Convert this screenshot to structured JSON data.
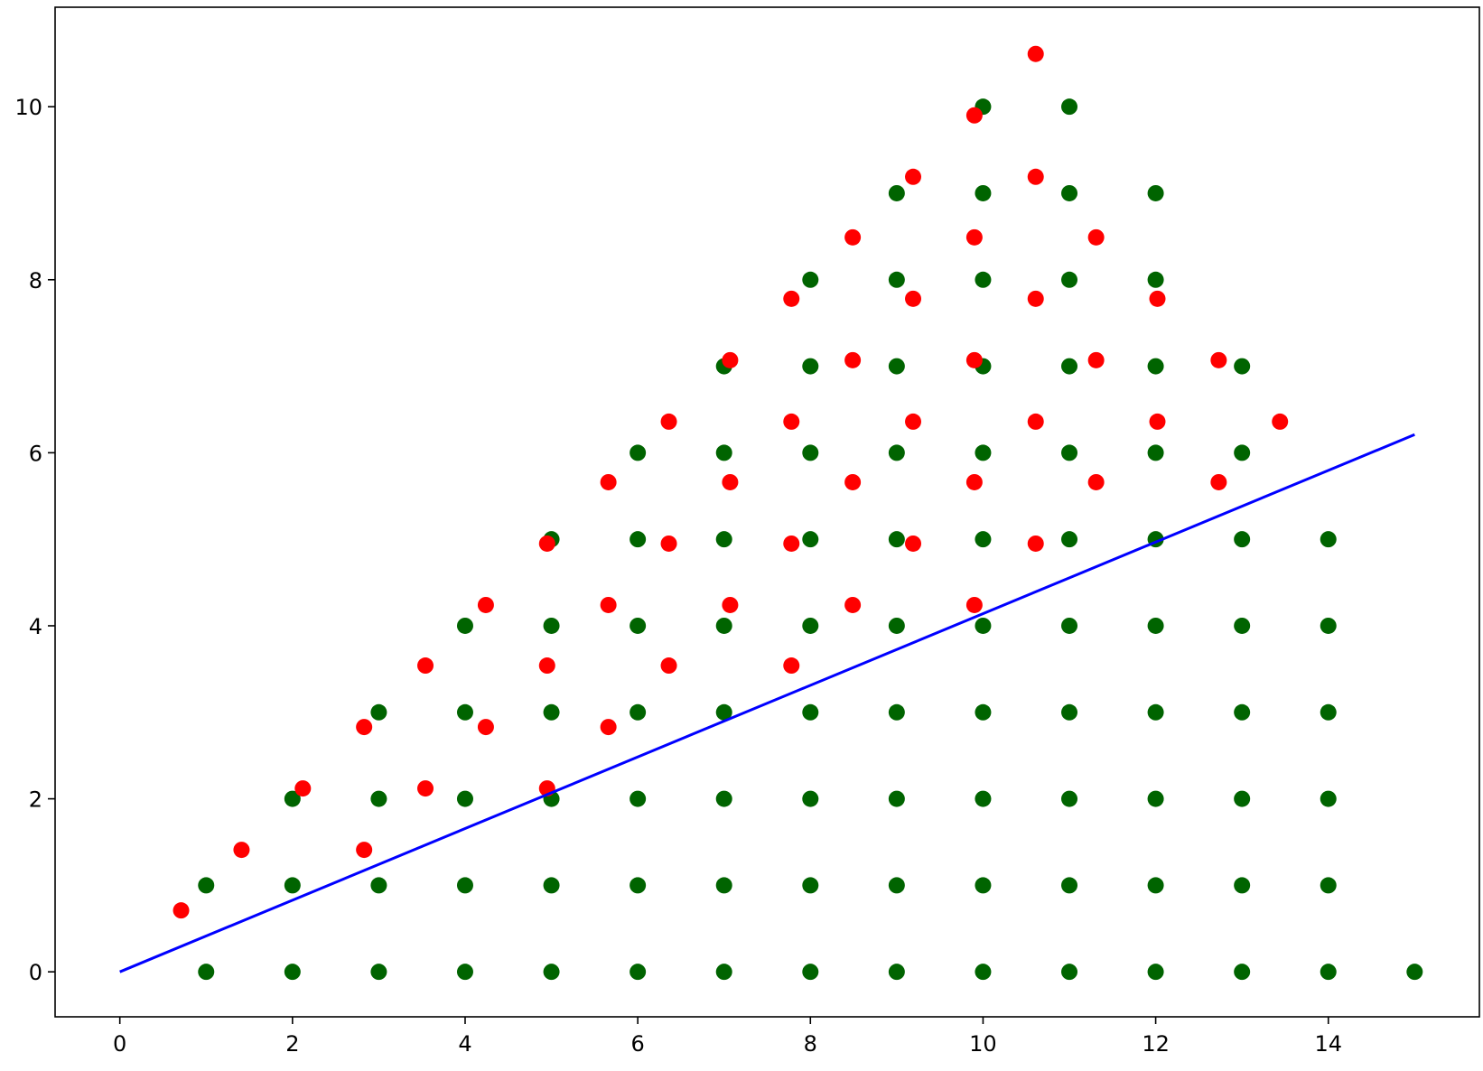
{
  "chart_data": {
    "type": "scatter",
    "title": "",
    "xlabel": "",
    "ylabel": "",
    "xlim": [
      -0.75,
      15.75
    ],
    "ylim": [
      -0.52,
      11.15
    ],
    "xticks": [
      0,
      2,
      4,
      6,
      8,
      10,
      12,
      14
    ],
    "yticks": [
      0,
      2,
      4,
      6,
      8,
      10
    ],
    "xtick_labels": [
      "0",
      "2",
      "4",
      "6",
      "8",
      "10",
      "12",
      "14"
    ],
    "ytick_labels": [
      "0",
      "2",
      "4",
      "6",
      "8",
      "10"
    ],
    "grid": false,
    "legend": "none",
    "series": [
      {
        "kind": "scatter",
        "color": "#006400",
        "points": [
          [
            1,
            0
          ],
          [
            2,
            0
          ],
          [
            3,
            0
          ],
          [
            4,
            0
          ],
          [
            5,
            0
          ],
          [
            6,
            0
          ],
          [
            7,
            0
          ],
          [
            8,
            0
          ],
          [
            9,
            0
          ],
          [
            10,
            0
          ],
          [
            11,
            0
          ],
          [
            12,
            0
          ],
          [
            13,
            0
          ],
          [
            14,
            0
          ],
          [
            15,
            0
          ],
          [
            1,
            1
          ],
          [
            2,
            1
          ],
          [
            3,
            1
          ],
          [
            4,
            1
          ],
          [
            5,
            1
          ],
          [
            6,
            1
          ],
          [
            7,
            1
          ],
          [
            8,
            1
          ],
          [
            9,
            1
          ],
          [
            10,
            1
          ],
          [
            11,
            1
          ],
          [
            12,
            1
          ],
          [
            13,
            1
          ],
          [
            14,
            1
          ],
          [
            2,
            2
          ],
          [
            3,
            2
          ],
          [
            4,
            2
          ],
          [
            5,
            2
          ],
          [
            6,
            2
          ],
          [
            7,
            2
          ],
          [
            8,
            2
          ],
          [
            9,
            2
          ],
          [
            10,
            2
          ],
          [
            11,
            2
          ],
          [
            12,
            2
          ],
          [
            13,
            2
          ],
          [
            14,
            2
          ],
          [
            3,
            3
          ],
          [
            4,
            3
          ],
          [
            5,
            3
          ],
          [
            6,
            3
          ],
          [
            7,
            3
          ],
          [
            8,
            3
          ],
          [
            9,
            3
          ],
          [
            10,
            3
          ],
          [
            11,
            3
          ],
          [
            12,
            3
          ],
          [
            13,
            3
          ],
          [
            14,
            3
          ],
          [
            4,
            4
          ],
          [
            5,
            4
          ],
          [
            6,
            4
          ],
          [
            7,
            4
          ],
          [
            8,
            4
          ],
          [
            9,
            4
          ],
          [
            10,
            4
          ],
          [
            11,
            4
          ],
          [
            12,
            4
          ],
          [
            13,
            4
          ],
          [
            14,
            4
          ],
          [
            5,
            5
          ],
          [
            6,
            5
          ],
          [
            7,
            5
          ],
          [
            8,
            5
          ],
          [
            9,
            5
          ],
          [
            10,
            5
          ],
          [
            11,
            5
          ],
          [
            12,
            5
          ],
          [
            13,
            5
          ],
          [
            14,
            5
          ],
          [
            6,
            6
          ],
          [
            7,
            6
          ],
          [
            8,
            6
          ],
          [
            9,
            6
          ],
          [
            10,
            6
          ],
          [
            11,
            6
          ],
          [
            12,
            6
          ],
          [
            13,
            6
          ],
          [
            7,
            7
          ],
          [
            8,
            7
          ],
          [
            9,
            7
          ],
          [
            10,
            7
          ],
          [
            11,
            7
          ],
          [
            12,
            7
          ],
          [
            13,
            7
          ],
          [
            8,
            8
          ],
          [
            9,
            8
          ],
          [
            10,
            8
          ],
          [
            11,
            8
          ],
          [
            12,
            8
          ],
          [
            9,
            9
          ],
          [
            10,
            9
          ],
          [
            11,
            9
          ],
          [
            12,
            9
          ],
          [
            10,
            10
          ],
          [
            11,
            10
          ]
        ]
      },
      {
        "kind": "scatter",
        "color": "#ff0000",
        "points": [
          [
            0.71,
            0.71
          ],
          [
            1.41,
            1.41
          ],
          [
            2.12,
            2.12
          ],
          [
            2.83,
            2.83
          ],
          [
            3.54,
            3.54
          ],
          [
            4.24,
            4.24
          ],
          [
            4.95,
            4.95
          ],
          [
            5.66,
            5.66
          ],
          [
            6.36,
            6.36
          ],
          [
            7.07,
            7.07
          ],
          [
            7.78,
            7.78
          ],
          [
            8.49,
            8.49
          ],
          [
            9.19,
            9.19
          ],
          [
            9.9,
            9.9
          ],
          [
            10.61,
            10.61
          ],
          [
            2.83,
            1.41
          ],
          [
            3.54,
            2.12
          ],
          [
            4.24,
            2.83
          ],
          [
            4.95,
            3.54
          ],
          [
            5.66,
            4.24
          ],
          [
            6.36,
            4.95
          ],
          [
            7.07,
            5.66
          ],
          [
            7.78,
            6.36
          ],
          [
            8.49,
            7.07
          ],
          [
            9.19,
            7.78
          ],
          [
            9.9,
            8.49
          ],
          [
            10.61,
            9.19
          ],
          [
            4.95,
            2.12
          ],
          [
            5.66,
            2.83
          ],
          [
            6.36,
            3.54
          ],
          [
            7.07,
            4.24
          ],
          [
            7.78,
            4.95
          ],
          [
            8.49,
            5.66
          ],
          [
            9.19,
            6.36
          ],
          [
            9.9,
            7.07
          ],
          [
            10.61,
            7.78
          ],
          [
            11.31,
            8.49
          ],
          [
            12.02,
            7.78
          ],
          [
            7.78,
            3.54
          ],
          [
            8.49,
            4.24
          ],
          [
            9.19,
            4.95
          ],
          [
            9.9,
            5.66
          ],
          [
            10.61,
            6.36
          ],
          [
            11.31,
            7.07
          ],
          [
            12.02,
            6.36
          ],
          [
            12.73,
            7.07
          ],
          [
            9.9,
            4.24
          ],
          [
            10.61,
            4.95
          ],
          [
            11.31,
            5.66
          ],
          [
            12.73,
            5.66
          ],
          [
            13.44,
            6.36
          ]
        ]
      },
      {
        "kind": "line",
        "color": "#0000ff",
        "points": [
          [
            0,
            0
          ],
          [
            15,
            6.21
          ]
        ]
      }
    ]
  }
}
